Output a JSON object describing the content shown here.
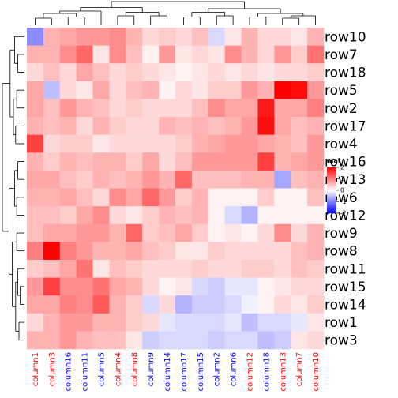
{
  "chart_data": {
    "type": "heatmap",
    "row_labels": [
      "row10",
      "row7",
      "row18",
      "row5",
      "row2",
      "row17",
      "row4",
      "row16",
      "row13",
      "row6",
      "row12",
      "row9",
      "row8",
      "row11",
      "row15",
      "row14",
      "row1",
      "row3"
    ],
    "col_labels": [
      "column1",
      "column3",
      "column16",
      "column11",
      "column5",
      "column4",
      "column8",
      "column9",
      "column14",
      "column17",
      "column15",
      "column2",
      "column6",
      "column12",
      "column18",
      "column13",
      "column7",
      "column10"
    ],
    "col_label_colors": [
      "red",
      "red",
      "blue",
      "blue",
      "blue",
      "red",
      "red",
      "blue",
      "blue",
      "blue",
      "blue",
      "blue",
      "blue",
      "red",
      "blue",
      "red",
      "red",
      "red"
    ],
    "color_scale": {
      "min": -2,
      "mid": 0,
      "max": 2,
      "low": "#0000ff",
      "midcolor": "#ffffff",
      "high": "#ff0000"
    },
    "legend": {
      "title": "mat",
      "ticks": [
        "2",
        "1",
        "0",
        "-1",
        "-2"
      ],
      "tick_values": [
        2,
        1,
        0,
        -1,
        -2
      ],
      "placement": "right"
    },
    "values": [
      [
        -0.9,
        0.6,
        0.7,
        0.8,
        0.8,
        0.9,
        0.6,
        0.3,
        0.4,
        0.3,
        0.5,
        -0.3,
        0.2,
        0.6,
        0.3,
        0.3,
        0.2,
        0.6
      ],
      [
        0.6,
        0.6,
        0.9,
        1.2,
        0.2,
        0.9,
        0.5,
        0.1,
        0.8,
        0.2,
        0.3,
        0.2,
        0.9,
        0.6,
        0.3,
        0.8,
        0.4,
        1.1
      ],
      [
        0.3,
        0.5,
        0.3,
        0.7,
        0.5,
        0.3,
        0.4,
        0.3,
        0.2,
        0.1,
        0.2,
        0.3,
        0.2,
        0.3,
        0.2,
        0.3,
        0.3,
        0.4
      ],
      [
        0.7,
        -0.5,
        0.3,
        0.2,
        0.7,
        0.3,
        0.5,
        0.6,
        0.1,
        0.3,
        0.2,
        0.4,
        0.4,
        0.8,
        0.6,
        2.0,
        1.9,
        0.8
      ],
      [
        0.7,
        0.5,
        0.8,
        0.6,
        0.5,
        0.3,
        0.4,
        0.3,
        0.3,
        0.3,
        0.5,
        0.9,
        0.7,
        0.7,
        1.8,
        0.7,
        0.7,
        1.0
      ],
      [
        0.6,
        0.5,
        0.6,
        0.3,
        0.6,
        0.4,
        0.3,
        0.3,
        0.6,
        0.5,
        0.6,
        0.5,
        0.6,
        0.8,
        1.9,
        0.7,
        0.5,
        0.6
      ],
      [
        1.5,
        0.3,
        0.4,
        0.4,
        0.2,
        0.3,
        0.3,
        0.3,
        0.3,
        0.4,
        0.6,
        0.7,
        0.8,
        0.8,
        0.7,
        0.6,
        0.5,
        0.8
      ],
      [
        0.6,
        0.4,
        0.6,
        0.5,
        0.6,
        0.6,
        0.4,
        0.7,
        0.3,
        0.5,
        0.8,
        0.8,
        0.8,
        0.8,
        1.5,
        0.6,
        0.7,
        0.8
      ],
      [
        0.7,
        0.7,
        0.5,
        0.4,
        0.6,
        0.5,
        0.6,
        0.8,
        0.6,
        1.2,
        0.5,
        0.5,
        0.5,
        0.6,
        0.6,
        -0.7,
        0.5,
        0.6
      ],
      [
        0.6,
        0.6,
        0.7,
        0.5,
        0.3,
        0.9,
        0.7,
        1.2,
        0.8,
        0.4,
        0.6,
        0.1,
        0.1,
        0.1,
        0.4,
        0.1,
        0.1,
        0.5
      ],
      [
        0.5,
        0.5,
        0.4,
        0.7,
        0.9,
        0.3,
        0.2,
        0.4,
        0.6,
        0.5,
        0.6,
        0.1,
        -0.3,
        -0.6,
        0.1,
        0.1,
        0.1,
        0.1
      ],
      [
        0.5,
        0.7,
        0.7,
        0.8,
        0.8,
        0.6,
        1.2,
        0.4,
        0.5,
        0.7,
        0.4,
        0.1,
        0.2,
        0.1,
        0.3,
        0.9,
        0.3,
        0.6
      ],
      [
        1.0,
        2.0,
        1.0,
        0.8,
        0.6,
        0.6,
        0.7,
        0.5,
        0.4,
        0.2,
        0.2,
        0.4,
        0.3,
        0.3,
        0.3,
        0.3,
        0.5,
        0.6
      ],
      [
        0.4,
        0.5,
        0.7,
        1.1,
        0.2,
        0.5,
        0.4,
        0.3,
        0.3,
        0.3,
        0.4,
        0.3,
        0.3,
        0.4,
        0.4,
        0.3,
        0.5,
        0.4
      ],
      [
        0.8,
        1.5,
        0.9,
        0.9,
        1.1,
        0.7,
        0.6,
        0.3,
        0.1,
        0.2,
        -0.3,
        -0.4,
        -0.2,
        -0.2,
        0.1,
        0.2,
        0.3,
        0.3
      ],
      [
        0.7,
        0.7,
        1.0,
        0.9,
        1.3,
        0.6,
        0.4,
        -0.3,
        0.3,
        -0.6,
        -0.4,
        -0.4,
        -0.3,
        -0.1,
        0.1,
        0.3,
        0.2,
        0.4
      ],
      [
        0.3,
        0.6,
        0.8,
        0.8,
        0.6,
        0.6,
        0.4,
        0.3,
        -0.2,
        -0.3,
        -0.3,
        -0.3,
        -0.2,
        -0.5,
        -0.3,
        -0.3,
        -0.2,
        0.2
      ],
      [
        0.6,
        0.6,
        0.8,
        0.6,
        0.5,
        0.5,
        0.2,
        -0.4,
        -0.3,
        -0.3,
        -0.3,
        -0.4,
        -0.3,
        -0.3,
        -0.5,
        -0.4,
        0.2,
        0.3
      ]
    ]
  }
}
